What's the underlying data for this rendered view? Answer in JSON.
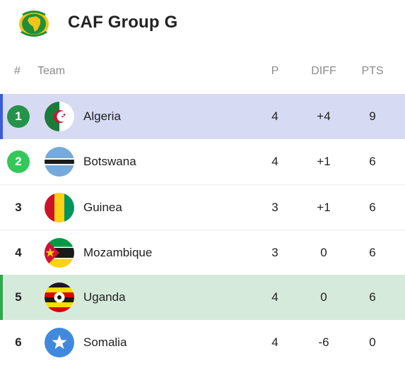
{
  "header": {
    "title": "CAF Group G",
    "logo_icon": "caf-africa-logo-icon"
  },
  "columns": {
    "rank": "#",
    "team": "Team",
    "played": "P",
    "diff": "DIFF",
    "points": "PTS"
  },
  "colors": {
    "leader_highlight": "#d6dbf3",
    "leader_bar": "#3b5bdb",
    "qualify_highlight": "#d5eadb",
    "qualify_bar": "#2fa84f",
    "rank1_badge": "#26934a",
    "rank2_badge": "#35c75a"
  },
  "rows": [
    {
      "rank": "1",
      "team": "Algeria",
      "played": "4",
      "diff": "+4",
      "points": "9",
      "flag_icon": "algeria-flag-icon"
    },
    {
      "rank": "2",
      "team": "Botswana",
      "played": "4",
      "diff": "+1",
      "points": "6",
      "flag_icon": "botswana-flag-icon"
    },
    {
      "rank": "3",
      "team": "Guinea",
      "played": "3",
      "diff": "+1",
      "points": "6",
      "flag_icon": "guinea-flag-icon"
    },
    {
      "rank": "4",
      "team": "Mozambique",
      "played": "3",
      "diff": "0",
      "points": "6",
      "flag_icon": "mozambique-flag-icon"
    },
    {
      "rank": "5",
      "team": "Uganda",
      "played": "4",
      "diff": "0",
      "points": "6",
      "flag_icon": "uganda-flag-icon"
    },
    {
      "rank": "6",
      "team": "Somalia",
      "played": "4",
      "diff": "-6",
      "points": "0",
      "flag_icon": "somalia-flag-icon"
    }
  ]
}
